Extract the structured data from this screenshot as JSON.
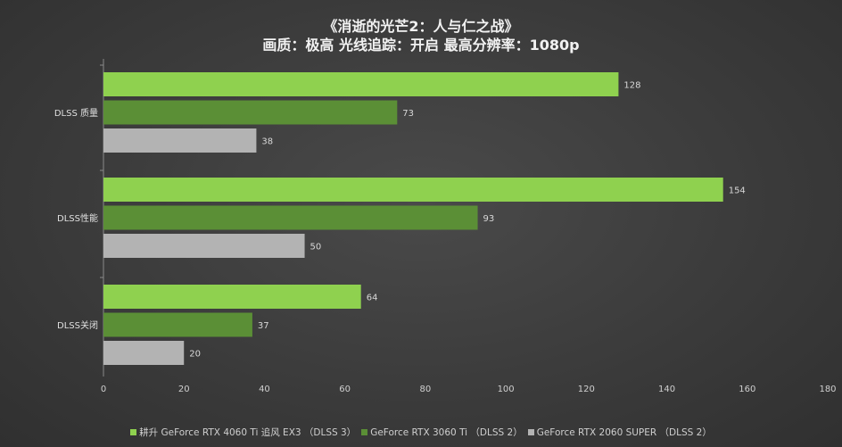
{
  "chart_data": {
    "type": "bar",
    "orientation": "horizontal",
    "title": "《消逝的光芒2：人与仁之战》",
    "subtitle": "画质：极高  光线追踪：开启  最高分辨率：1080p",
    "categories": [
      "DLSS 质量",
      "DLSS性能",
      "DLSS关闭"
    ],
    "series": [
      {
        "name": "耕升 GeForce RTX 4060 Ti 追风 EX3 （DLSS 3）",
        "color": "#8fd14f",
        "values": [
          128,
          154,
          64
        ]
      },
      {
        "name": "GeForce RTX 3060 Ti （DLSS 2）",
        "color": "#5b8f36",
        "values": [
          73,
          93,
          37
        ]
      },
      {
        "name": "GeForce RTX 2060 SUPER （DLSS 2）",
        "color": "#b3b3b3",
        "values": [
          38,
          50,
          20
        ]
      }
    ],
    "xlim": [
      0,
      180
    ],
    "xticks": [
      0,
      20,
      40,
      60,
      80,
      100,
      120,
      140,
      160,
      180
    ],
    "xlabel": "",
    "ylabel": "",
    "grid": false,
    "legend_position": "bottom"
  }
}
